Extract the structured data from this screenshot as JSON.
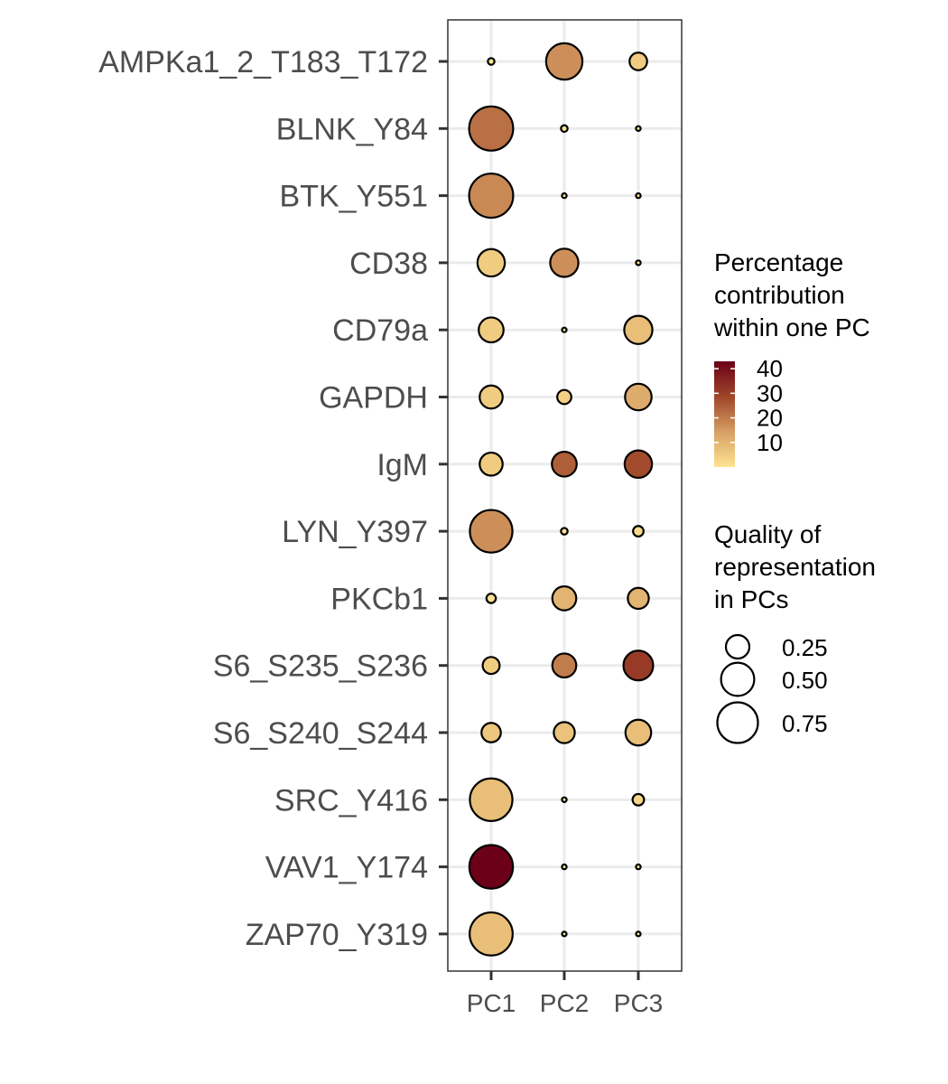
{
  "chart_data": {
    "type": "scatter",
    "x_categories": [
      "PC1",
      "PC2",
      "PC3"
    ],
    "y_categories": [
      "AMPKa1_2_T183_T172",
      "BLNK_Y84",
      "BTK_Y551",
      "CD38",
      "CD79a",
      "GAPDH",
      "IgM",
      "LYN_Y397",
      "PKCb1",
      "S6_S235_S236",
      "S6_S240_S244",
      "SRC_Y416",
      "VAV1_Y174",
      "ZAP70_Y319"
    ],
    "points": [
      {
        "y": "AMPKa1_2_T183_T172",
        "x": "PC1",
        "contribution": 0.1,
        "quality": 0.02
      },
      {
        "y": "AMPKa1_2_T183_T172",
        "x": "PC2",
        "contribution": 17.0,
        "quality": 0.6
      },
      {
        "y": "AMPKa1_2_T183_T172",
        "x": "PC3",
        "contribution": 5.0,
        "quality": 0.14
      },
      {
        "y": "BLNK_Y84",
        "x": "PC1",
        "contribution": 22.0,
        "quality": 0.88
      },
      {
        "y": "BLNK_Y84",
        "x": "PC2",
        "contribution": 0.2,
        "quality": 0.02
      },
      {
        "y": "BLNK_Y84",
        "x": "PC3",
        "contribution": 0.1,
        "quality": 0.01
      },
      {
        "y": "BTK_Y551",
        "x": "PC1",
        "contribution": 18.0,
        "quality": 0.88
      },
      {
        "y": "BTK_Y551",
        "x": "PC2",
        "contribution": 0.1,
        "quality": 0.01
      },
      {
        "y": "BTK_Y551",
        "x": "PC3",
        "contribution": 0.2,
        "quality": 0.01
      },
      {
        "y": "CD38",
        "x": "PC1",
        "contribution": 5.0,
        "quality": 0.34
      },
      {
        "y": "CD38",
        "x": "PC2",
        "contribution": 17.0,
        "quality": 0.36
      },
      {
        "y": "CD38",
        "x": "PC3",
        "contribution": 0.1,
        "quality": 0.01
      },
      {
        "y": "CD79a",
        "x": "PC1",
        "contribution": 5.0,
        "quality": 0.28
      },
      {
        "y": "CD79a",
        "x": "PC2",
        "contribution": 0.1,
        "quality": 0.005
      },
      {
        "y": "CD79a",
        "x": "PC3",
        "contribution": 8.0,
        "quality": 0.36
      },
      {
        "y": "GAPDH",
        "x": "PC1",
        "contribution": 5.0,
        "quality": 0.24
      },
      {
        "y": "GAPDH",
        "x": "PC2",
        "contribution": 4.0,
        "quality": 0.09
      },
      {
        "y": "GAPDH",
        "x": "PC3",
        "contribution": 12.0,
        "quality": 0.32
      },
      {
        "y": "IgM",
        "x": "PC1",
        "contribution": 5.0,
        "quality": 0.24
      },
      {
        "y": "IgM",
        "x": "PC2",
        "contribution": 25.0,
        "quality": 0.28
      },
      {
        "y": "IgM",
        "x": "PC3",
        "contribution": 28.0,
        "quality": 0.34
      },
      {
        "y": "LYN_Y397",
        "x": "PC1",
        "contribution": 17.0,
        "quality": 0.82
      },
      {
        "y": "LYN_Y397",
        "x": "PC2",
        "contribution": 0.3,
        "quality": 0.02
      },
      {
        "y": "LYN_Y397",
        "x": "PC3",
        "contribution": 2.0,
        "quality": 0.05
      },
      {
        "y": "PKCb1",
        "x": "PC1",
        "contribution": 1.0,
        "quality": 0.04
      },
      {
        "y": "PKCb1",
        "x": "PC2",
        "contribution": 10.0,
        "quality": 0.26
      },
      {
        "y": "PKCb1",
        "x": "PC3",
        "contribution": 10.0,
        "quality": 0.2
      },
      {
        "y": "S6_S235_S236",
        "x": "PC1",
        "contribution": 5.0,
        "quality": 0.13
      },
      {
        "y": "S6_S235_S236",
        "x": "PC2",
        "contribution": 20.0,
        "quality": 0.26
      },
      {
        "y": "S6_S235_S236",
        "x": "PC3",
        "contribution": 31.0,
        "quality": 0.4
      },
      {
        "y": "S6_S240_S244",
        "x": "PC1",
        "contribution": 6.0,
        "quality": 0.17
      },
      {
        "y": "S6_S240_S244",
        "x": "PC2",
        "contribution": 7.0,
        "quality": 0.2
      },
      {
        "y": "S6_S240_S244",
        "x": "PC3",
        "contribution": 8.0,
        "quality": 0.3
      },
      {
        "y": "SRC_Y416",
        "x": "PC1",
        "contribution": 8.0,
        "quality": 0.82
      },
      {
        "y": "SRC_Y416",
        "x": "PC2",
        "contribution": 0.1,
        "quality": 0.01
      },
      {
        "y": "SRC_Y416",
        "x": "PC3",
        "contribution": 3.0,
        "quality": 0.06
      },
      {
        "y": "VAV1_Y174",
        "x": "PC1",
        "contribution": 43.0,
        "quality": 0.86
      },
      {
        "y": "VAV1_Y174",
        "x": "PC2",
        "contribution": 0.1,
        "quality": 0.01
      },
      {
        "y": "VAV1_Y174",
        "x": "PC3",
        "contribution": 0.1,
        "quality": 0.01
      },
      {
        "y": "ZAP70_Y319",
        "x": "PC1",
        "contribution": 8.0,
        "quality": 0.84
      },
      {
        "y": "ZAP70_Y319",
        "x": "PC2",
        "contribution": 0.1,
        "quality": 0.005
      },
      {
        "y": "ZAP70_Y319",
        "x": "PC3",
        "contribution": 0.1,
        "quality": 0.005
      }
    ],
    "color_scale": {
      "title": [
        "Percentage",
        "contribution",
        "within one PC"
      ],
      "domain": [
        0,
        43
      ],
      "ticks": [
        10,
        20,
        30,
        40
      ],
      "colors": [
        "#fee391",
        "#d6a064",
        "#a0472a",
        "#6b0018"
      ]
    },
    "size_scale": {
      "title": [
        "Quality of",
        "representation",
        "in PCs"
      ],
      "breaks": [
        0.25,
        0.5,
        0.75
      ],
      "labels": [
        "0.25",
        "0.50",
        "0.75"
      ]
    },
    "grid": true
  }
}
